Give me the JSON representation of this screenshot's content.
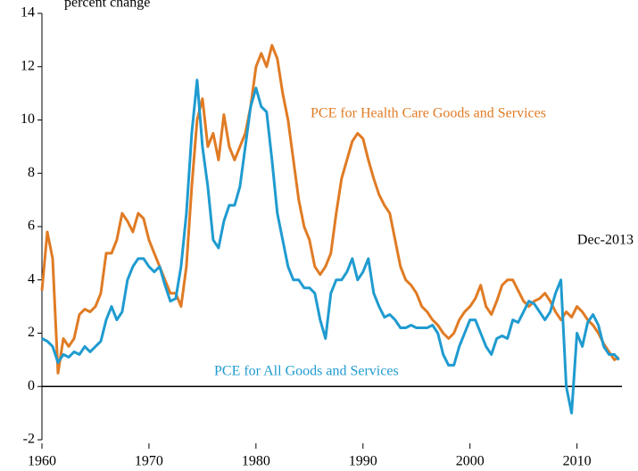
{
  "chart_data": {
    "type": "line",
    "ylabel": "percent change",
    "annotations": [
      {
        "text": "PCE for Health Care Goods and Services",
        "color": "#e07b24"
      },
      {
        "text": "PCE for All Goods and Services",
        "color": "#1f9bd0"
      },
      {
        "text": "Dec-2013",
        "color": "#000000"
      }
    ],
    "xlim": [
      1960,
      2014.2
    ],
    "xticks": [
      1960,
      1970,
      1980,
      1990,
      2000,
      2010
    ],
    "ylim": [
      -2,
      14
    ],
    "yticks": [
      -2,
      0,
      2,
      4,
      6,
      8,
      10,
      12,
      14
    ],
    "x": [
      1960,
      1960.5,
      1961,
      1961.5,
      1962,
      1962.5,
      1963,
      1963.5,
      1964,
      1964.5,
      1965,
      1965.5,
      1966,
      1966.5,
      1967,
      1967.5,
      1968,
      1968.5,
      1969,
      1969.5,
      1970,
      1970.5,
      1971,
      1971.5,
      1972,
      1972.5,
      1973,
      1973.5,
      1974,
      1974.5,
      1975,
      1975.5,
      1976,
      1976.5,
      1977,
      1977.5,
      1978,
      1978.5,
      1979,
      1979.5,
      1980,
      1980.5,
      1981,
      1981.5,
      1982,
      1982.5,
      1983,
      1983.5,
      1984,
      1984.5,
      1985,
      1985.5,
      1986,
      1986.5,
      1987,
      1987.5,
      1988,
      1988.5,
      1989,
      1989.5,
      1990,
      1990.5,
      1991,
      1991.5,
      1992,
      1992.5,
      1993,
      1993.5,
      1994,
      1994.5,
      1995,
      1995.5,
      1996,
      1996.5,
      1997,
      1997.5,
      1998,
      1998.5,
      1999,
      1999.5,
      2000,
      2000.5,
      2001,
      2001.5,
      2002,
      2002.5,
      2003,
      2003.5,
      2004,
      2004.5,
      2005,
      2005.5,
      2006,
      2006.5,
      2007,
      2007.5,
      2008,
      2008.5,
      2009,
      2009.5,
      2010,
      2010.5,
      2011,
      2011.5,
      2012,
      2012.5,
      2013,
      2013.5,
      2013.92
    ],
    "series": [
      {
        "name": "PCE for Health Care Goods and Services",
        "color": "#e07b24",
        "values": [
          3.6,
          5.8,
          4.8,
          0.5,
          1.8,
          1.5,
          1.8,
          2.7,
          2.9,
          2.8,
          3.0,
          3.5,
          5.0,
          5.0,
          5.5,
          6.5,
          6.2,
          5.8,
          6.5,
          6.3,
          5.5,
          5.0,
          4.5,
          4.0,
          3.5,
          3.5,
          3.0,
          4.5,
          7.5,
          10.0,
          10.8,
          9.0,
          9.5,
          8.5,
          10.2,
          9.0,
          8.5,
          9.0,
          9.5,
          10.5,
          12.0,
          12.5,
          12.0,
          12.8,
          12.3,
          11.0,
          10.0,
          8.5,
          7.0,
          6.0,
          5.5,
          4.5,
          4.2,
          4.5,
          5.0,
          6.5,
          7.8,
          8.5,
          9.2,
          9.5,
          9.3,
          8.5,
          7.8,
          7.2,
          6.8,
          6.5,
          5.5,
          4.5,
          4.0,
          3.8,
          3.5,
          3.0,
          2.8,
          2.5,
          2.3,
          2.0,
          1.8,
          2.0,
          2.5,
          2.8,
          3.0,
          3.3,
          3.8,
          3.0,
          2.7,
          3.2,
          3.8,
          4.0,
          4.0,
          3.6,
          3.2,
          3.0,
          3.2,
          3.3,
          3.5,
          3.2,
          2.8,
          2.5,
          2.8,
          2.6,
          3.0,
          2.8,
          2.5,
          2.3,
          2.0,
          1.6,
          1.3,
          1.0,
          1.1
        ]
      },
      {
        "name": "PCE for All Goods and Services",
        "color": "#1f9bd0",
        "values": [
          1.8,
          1.7,
          1.5,
          0.9,
          1.2,
          1.1,
          1.3,
          1.2,
          1.5,
          1.3,
          1.5,
          1.7,
          2.5,
          3.0,
          2.5,
          2.8,
          4.0,
          4.5,
          4.8,
          4.8,
          4.5,
          4.3,
          4.5,
          3.8,
          3.2,
          3.3,
          4.5,
          6.5,
          9.5,
          11.5,
          9.0,
          7.5,
          5.5,
          5.2,
          6.2,
          6.8,
          6.8,
          7.5,
          9.0,
          10.5,
          11.2,
          10.5,
          10.3,
          8.5,
          6.5,
          5.5,
          4.5,
          4.0,
          4.0,
          3.7,
          3.7,
          3.5,
          2.5,
          1.8,
          3.5,
          4.0,
          4.0,
          4.3,
          4.8,
          4.0,
          4.3,
          4.8,
          3.5,
          3.0,
          2.6,
          2.7,
          2.5,
          2.2,
          2.2,
          2.3,
          2.2,
          2.2,
          2.2,
          2.3,
          2.0,
          1.2,
          0.8,
          0.8,
          1.5,
          2.0,
          2.5,
          2.5,
          2.0,
          1.5,
          1.2,
          1.8,
          1.9,
          1.8,
          2.5,
          2.4,
          2.8,
          3.2,
          3.1,
          2.8,
          2.5,
          2.8,
          3.5,
          4.0,
          0.0,
          -1.0,
          2.0,
          1.5,
          2.4,
          2.7,
          2.3,
          1.5,
          1.2,
          1.2,
          1.0
        ]
      }
    ]
  }
}
